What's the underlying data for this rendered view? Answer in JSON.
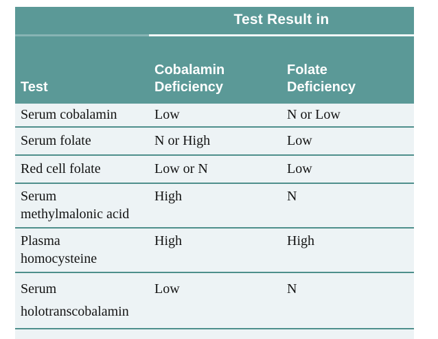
{
  "table": {
    "title": "Test Result in",
    "columns": {
      "test": "Test",
      "cobalamin": "Cobalamin Deficiency",
      "folate": "Folate Deficiency"
    },
    "rows": [
      {
        "test": "Serum cobalamin",
        "cobalamin_result": "Low",
        "folate_result": "N or Low"
      },
      {
        "test": "Serum folate",
        "cobalamin_result": "N or High",
        "folate_result": "Low"
      },
      {
        "test": "Red cell folate",
        "cobalamin_result": "Low or N",
        "folate_result": "Low"
      },
      {
        "test": "Serum methylmalonic acid",
        "cobalamin_result": "High",
        "folate_result": "N"
      },
      {
        "test": "Plasma homocysteine",
        "cobalamin_result": "High",
        "folate_result": "High"
      },
      {
        "test": "Serum holotranscobalamin",
        "cobalamin_result": "Low",
        "folate_result": "N"
      }
    ],
    "colors": {
      "header_background": "#5b9997",
      "header_text": "#ffffff",
      "body_background": "#edf3f5",
      "row_divider": "#4d8e8b",
      "title_underline": "#f7fbfb",
      "body_text": "#131313"
    }
  }
}
